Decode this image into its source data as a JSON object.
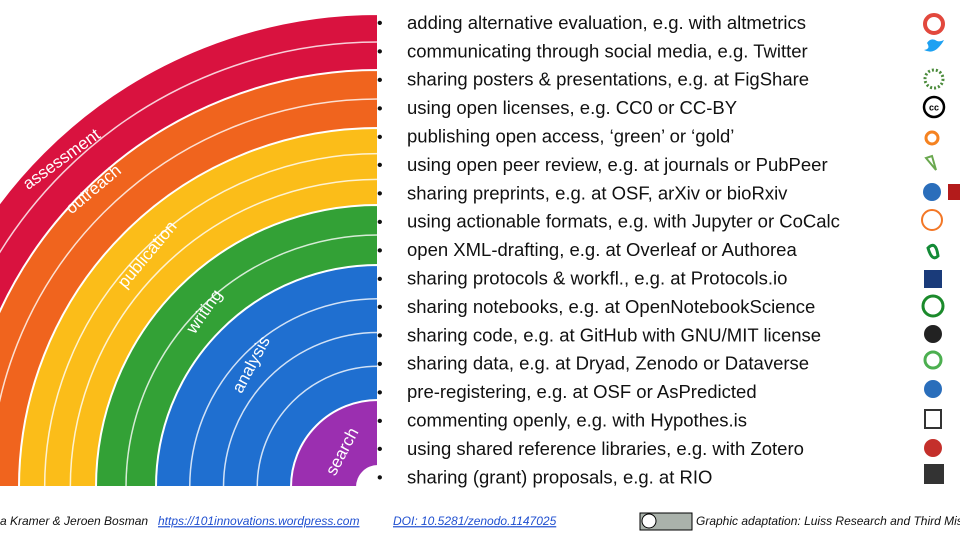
{
  "diagram": {
    "bands": [
      {
        "label": "assessment",
        "color": "#d9123f"
      },
      {
        "label": "outreach",
        "color": "#f0641e"
      },
      {
        "label": "publication",
        "color": "#fbbd19"
      },
      {
        "label": "writing",
        "color": "#33a136"
      },
      {
        "label": "analysis",
        "color": "#1f6fd0"
      },
      {
        "label": "search",
        "color": "#9b2fb0"
      }
    ],
    "items": [
      "adding alternative evaluation, e.g. with altmetrics",
      "communicating through social media, e.g. Twitter",
      "sharing posters & presentations, e.g. at FigShare",
      "using open licenses, e.g. CC0 or CC-BY",
      "publishing open access, ‘green’ or ‘gold’",
      "using open peer review, e.g. at journals or PubPeer",
      "sharing preprints, e.g. at OSF, arXiv or bioRxiv",
      "using actionable formats, e.g. with Jupyter or CoCalc",
      "open XML-drafting, e.g. at Overleaf or Authorea",
      "sharing protocols & workfl., e.g. at Protocols.io",
      "sharing notebooks, e.g. at OpenNotebookScience",
      "sharing code, e.g. at GitHub with GNU/MIT license",
      "sharing data, e.g. at Dryad, Zenodo or Dataverse",
      "pre-registering, e.g. at OSF or AsPredicted",
      "commenting openly, e.g. with Hypothes.is",
      "using shared reference libraries, e.g. with Zotero",
      "sharing (grant) proposals, e.g. at RIO"
    ],
    "footer": {
      "authors": "a Kramer & Jeroen Bosman",
      "link": "https://101innovations.wordpress.com",
      "doi": "DOI: 10.5281/zenodo.1147025",
      "adaptation": "Graphic adaptation: Luiss Research and Third Miss"
    }
  }
}
